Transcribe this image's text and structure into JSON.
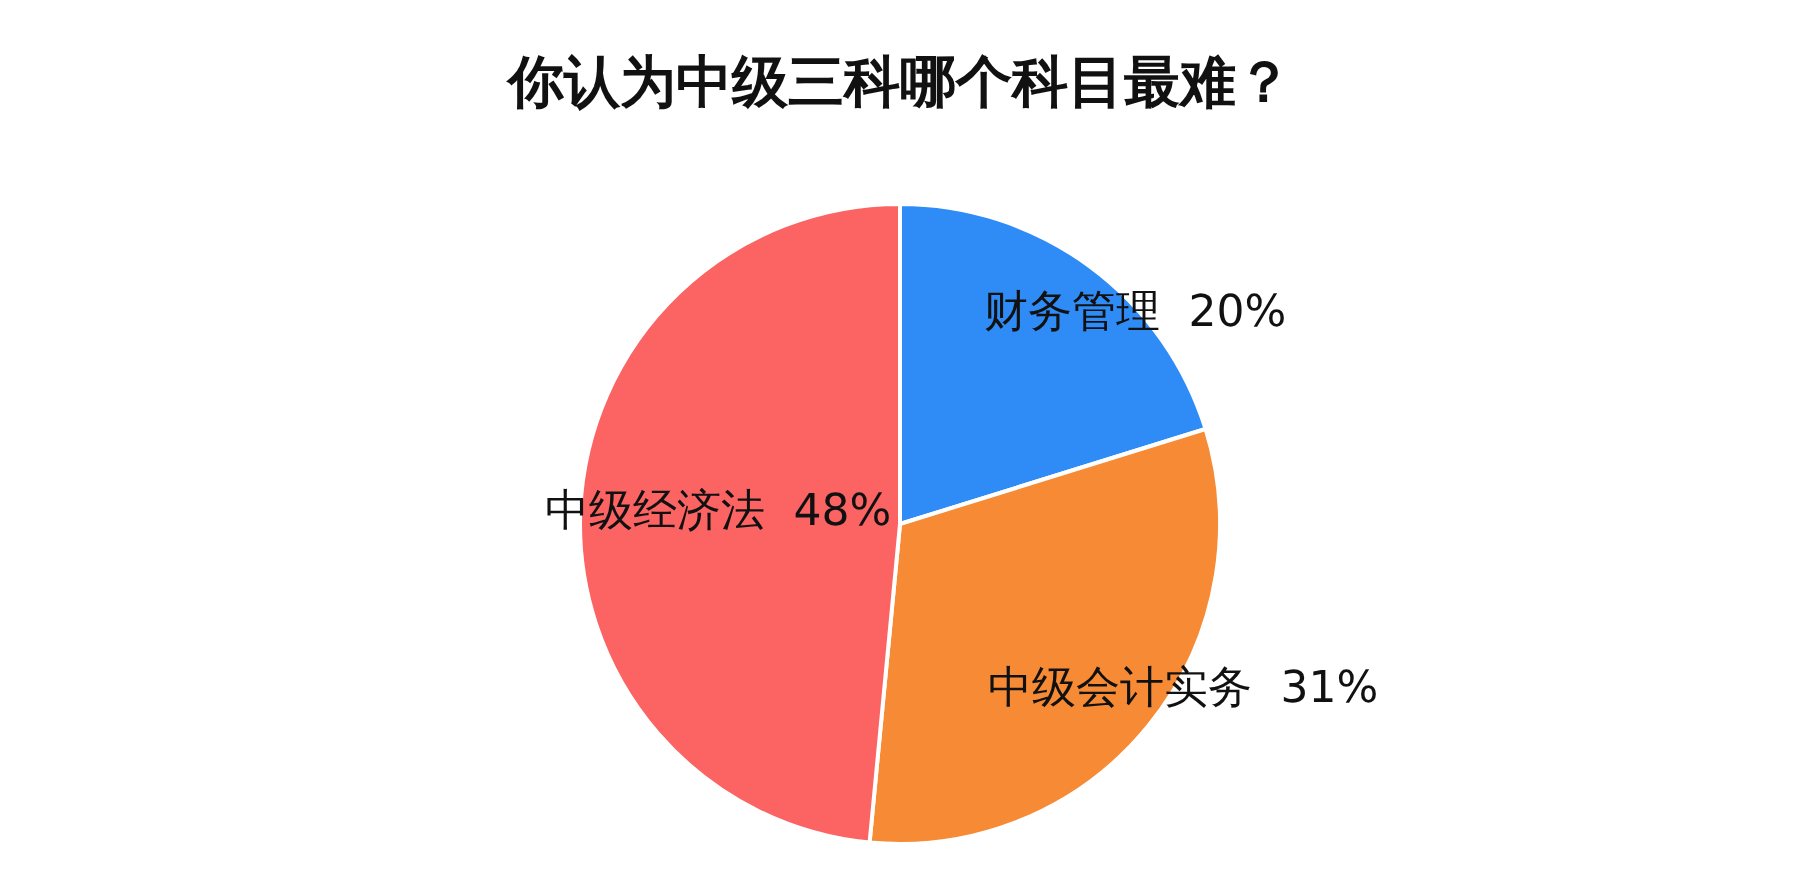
{
  "chart_data": {
    "type": "pie",
    "title": "你认为中级三科哪个科目最难？",
    "categories": [
      "财务管理",
      "中级会计实务",
      "中级经济法"
    ],
    "values": [
      20,
      31,
      48
    ],
    "value_labels": [
      "20%",
      "31%",
      "48%"
    ],
    "colors": [
      "#2f8cf6",
      "#f68a35",
      "#fc6464"
    ],
    "legend": false
  }
}
